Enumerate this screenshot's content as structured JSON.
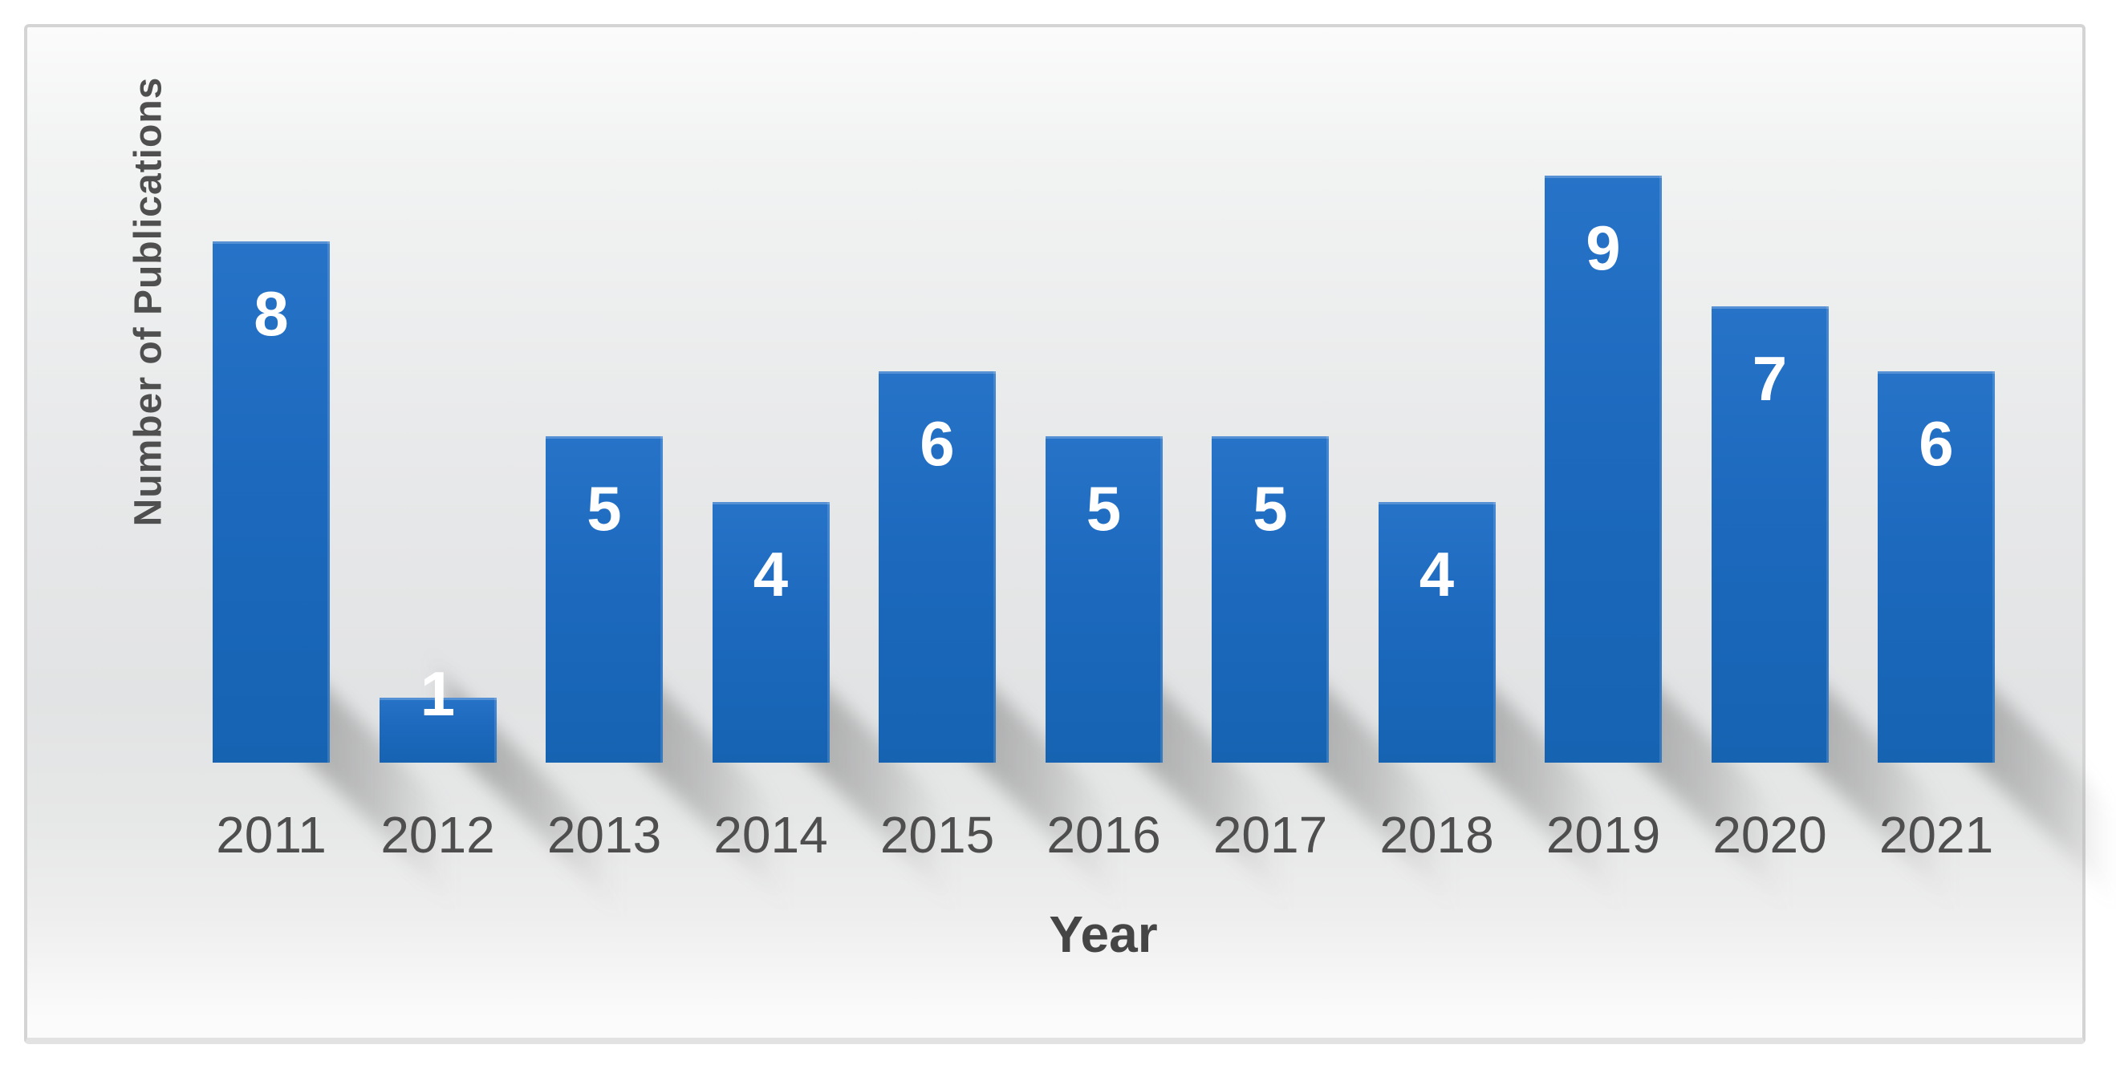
{
  "chart_data": {
    "type": "bar",
    "title": "",
    "categories": [
      "2011",
      "2012",
      "2013",
      "2014",
      "2015",
      "2016",
      "2017",
      "2018",
      "2019",
      "2020",
      "2021"
    ],
    "values": [
      8,
      1,
      5,
      4,
      6,
      5,
      5,
      4,
      9,
      7,
      6
    ],
    "xlabel": "Year",
    "ylabel": "Number of Publications",
    "ylim": [
      0,
      9
    ],
    "grid": false,
    "legend": "none",
    "axes_lines": "none",
    "data_label_position": "inside-end",
    "colors": {
      "bar_top": "#2673c8",
      "bar_bottom": "#1663b2",
      "bar_mid": "#1c69be",
      "data_label": "#ffffff",
      "tick_label": "#4e4e4e",
      "axis_title": "#4a4a4a",
      "panel_border": "#d4d4d4",
      "panel_bg_light": "#fbfbfb",
      "panel_bg_dark": "#e2e3e4",
      "shadow": "#8a8a8a"
    }
  }
}
